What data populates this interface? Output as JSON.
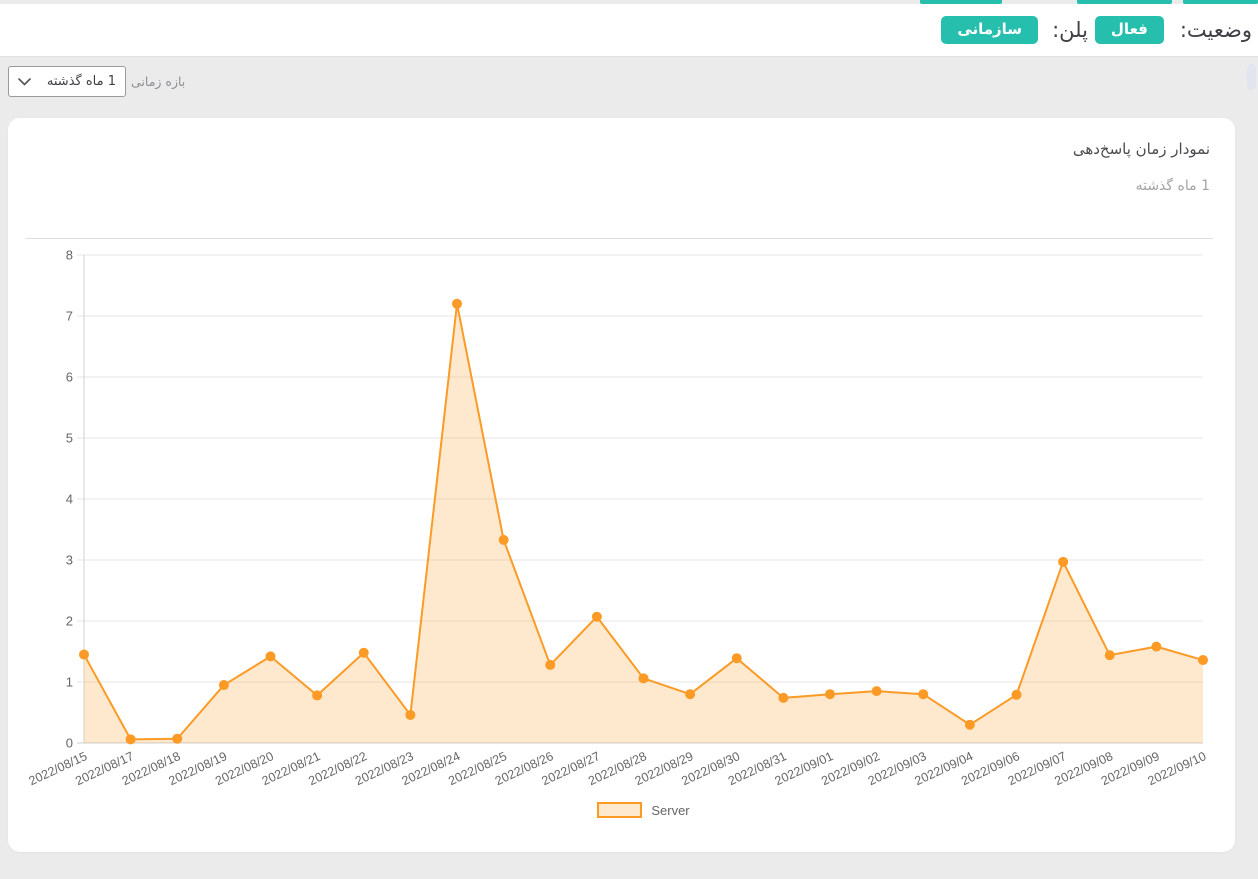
{
  "header": {
    "status_label": "وضعیت:",
    "status_value": "فعال",
    "plan_label": "پلن:",
    "plan_value": "سازمانی",
    "badge_color": "#26bfad"
  },
  "filter": {
    "label": "بازه زمانی",
    "selected": "1 ماه گذشته"
  },
  "card": {
    "title": "نمودار زمان پاسخ‌دهی",
    "subtitle": "1 ماه گذشته"
  },
  "chart_data": {
    "type": "area",
    "title": "نمودار زمان پاسخ‌دهی",
    "subtitle": "1 ماه گذشته",
    "grid": "horizontal",
    "legend_position": "bottom",
    "ylim": [
      0,
      8
    ],
    "ytick_step": 1,
    "x": [
      "2022/08/15",
      "2022/08/17",
      "2022/08/18",
      "2022/08/19",
      "2022/08/20",
      "2022/08/21",
      "2022/08/22",
      "2022/08/23",
      "2022/08/24",
      "2022/08/25",
      "2022/08/26",
      "2022/08/27",
      "2022/08/28",
      "2022/08/29",
      "2022/08/30",
      "2022/08/31",
      "2022/09/01",
      "2022/09/02",
      "2022/09/03",
      "2022/09/04",
      "2022/09/06",
      "2022/09/07",
      "2022/09/08",
      "2022/09/09",
      "2022/09/10"
    ],
    "series": [
      {
        "name": "Server",
        "color": "#fc9a26",
        "fill": "rgba(252,154,38,0.22)",
        "values": [
          1.45,
          0.06,
          0.07,
          0.95,
          1.42,
          0.78,
          1.48,
          0.46,
          7.2,
          3.33,
          1.28,
          2.07,
          1.06,
          0.8,
          1.39,
          0.74,
          0.8,
          0.85,
          0.8,
          0.3,
          0.79,
          2.97,
          1.44,
          1.58,
          1.36
        ]
      }
    ],
    "colors": {
      "gridline": "#e6e6e6",
      "axis": "#d2d2d2",
      "tick_text": "#666666"
    }
  }
}
